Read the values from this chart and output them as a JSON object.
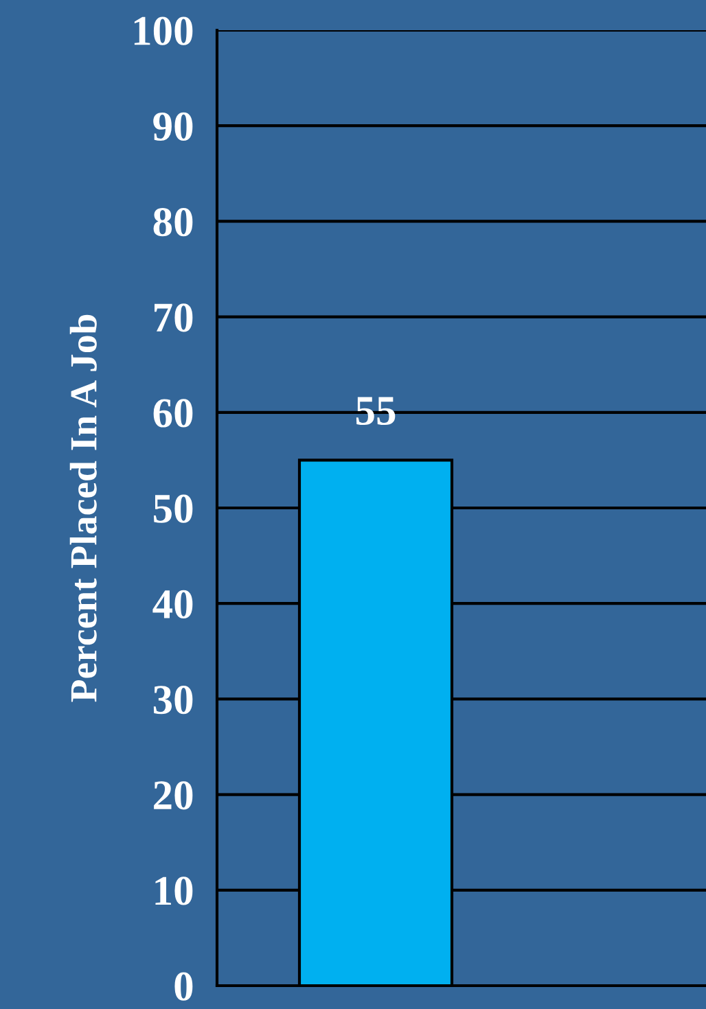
{
  "chart_data": {
    "type": "bar",
    "ylabel": "Percent Placed In A Job",
    "categories": [
      null
    ],
    "values": [
      55
    ],
    "color": "#00b0f0",
    "data_labels": true,
    "ylim": [
      0,
      100
    ],
    "yticks": [
      0,
      10,
      20,
      30,
      40,
      50,
      60,
      70,
      80,
      90,
      100
    ],
    "grid": "y",
    "tick_labels": "y"
  }
}
